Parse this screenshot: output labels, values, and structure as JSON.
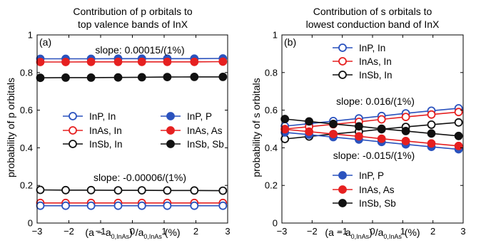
{
  "chart_data": [
    {
      "type": "line",
      "panel_label": "(a)",
      "title_lines": [
        "Contribution of p orbitals to",
        "top valence bands of InX"
      ],
      "ylabel": "probability of p orbitals",
      "xlabel": {
        "main": "(a − a",
        "sub1": "0,InAs",
        "mid": ") /a",
        "sub2": "0,InAs",
        "tail": " (%)"
      },
      "xlim": [
        -3,
        3
      ],
      "ylim": [
        0,
        1
      ],
      "xticks": [
        -3,
        -2,
        -1,
        0,
        1,
        2,
        3
      ],
      "xtick_labels": [
        "−3",
        "−2",
        "−1",
        "0",
        "1",
        "2",
        "3"
      ],
      "yticks": [
        0,
        0.2,
        0.4,
        0.6,
        0.8,
        1
      ],
      "ytick_labels": [
        "0",
        "0.2",
        "0.4",
        "0.6",
        "0.8",
        "1"
      ],
      "x": [
        -2.9,
        -2.1,
        -1.3,
        -0.45,
        0.3,
        1.1,
        1.95,
        2.85
      ],
      "series": [
        {
          "name": "InP, P",
          "color": "#2a52be",
          "marker": "filled",
          "values": [
            0.873,
            0.873,
            0.873,
            0.874,
            0.874,
            0.874,
            0.874,
            0.875
          ]
        },
        {
          "name": "InAs, As",
          "color": "#e62020",
          "marker": "filled",
          "values": [
            0.856,
            0.856,
            0.857,
            0.857,
            0.857,
            0.857,
            0.857,
            0.858
          ]
        },
        {
          "name": "InSb, Sb",
          "color": "#111111",
          "marker": "filled",
          "values": [
            0.772,
            0.773,
            0.773,
            0.774,
            0.775,
            0.776,
            0.777,
            0.777
          ]
        },
        {
          "name": "InSb, In",
          "color": "#111111",
          "marker": "open",
          "values": [
            0.176,
            0.175,
            0.175,
            0.174,
            0.174,
            0.173,
            0.173,
            0.172
          ]
        },
        {
          "name": "InAs, In",
          "color": "#e62020",
          "marker": "open",
          "values": [
            0.107,
            0.107,
            0.107,
            0.107,
            0.107,
            0.107,
            0.107,
            0.107
          ]
        },
        {
          "name": "InP, In",
          "color": "#2a52be",
          "marker": "open",
          "values": [
            0.092,
            0.092,
            0.092,
            0.092,
            0.092,
            0.092,
            0.092,
            0.092
          ]
        }
      ],
      "legend": [
        {
          "label": "InP, In",
          "color": "#2a52be",
          "marker": "open"
        },
        {
          "label": "InP, P",
          "color": "#2a52be",
          "marker": "filled"
        },
        {
          "label": "InAs, In",
          "color": "#e62020",
          "marker": "open"
        },
        {
          "label": "InAs, As",
          "color": "#e62020",
          "marker": "filled"
        },
        {
          "label": "InSb, In",
          "color": "#111111",
          "marker": "open"
        },
        {
          "label": "InSb, Sb",
          "color": "#111111",
          "marker": "filled"
        }
      ],
      "annotations": [
        "slope: 0.00015/(1%)",
        "slope: -0.00006/(1%)"
      ]
    },
    {
      "type": "line",
      "panel_label": "(b)",
      "title_lines": [
        "Contribution of s orbitals to",
        "lowest conduction band of InX"
      ],
      "ylabel": "probability of s orbitals",
      "xlabel": {
        "main": "(a − a",
        "sub1": "0,InAs",
        "mid": ") /a",
        "sub2": "0,InAs",
        "tail": " (%)"
      },
      "xlim": [
        -3,
        3
      ],
      "ylim": [
        0,
        1
      ],
      "xticks": [
        -3,
        -2,
        -1,
        0,
        1,
        2,
        3
      ],
      "xtick_labels": [
        "−3",
        "−2",
        "−1",
        "0",
        "1",
        "2",
        "3"
      ],
      "yticks": [
        0,
        0.2,
        0.4,
        0.6,
        0.8,
        1
      ],
      "ytick_labels": [
        "0",
        "0.2",
        "0.4",
        "0.6",
        "0.8",
        "1"
      ],
      "x": [
        -2.9,
        -2.1,
        -1.3,
        -0.45,
        0.3,
        1.1,
        1.95,
        2.85
      ],
      "series": [
        {
          "name": "InP, In",
          "color": "#2a52be",
          "marker": "open",
          "values": [
            0.515,
            0.528,
            0.542,
            0.556,
            0.569,
            0.583,
            0.597,
            0.61
          ]
        },
        {
          "name": "InAs, In",
          "color": "#e62020",
          "marker": "open",
          "values": [
            0.5,
            0.512,
            0.525,
            0.538,
            0.551,
            0.564,
            0.577,
            0.59
          ]
        },
        {
          "name": "InSb, In",
          "color": "#111111",
          "marker": "open",
          "values": [
            0.447,
            0.46,
            0.473,
            0.486,
            0.499,
            0.511,
            0.523,
            0.535
          ]
        },
        {
          "name": "InP, P",
          "color": "#2a52be",
          "marker": "filled",
          "values": [
            0.482,
            0.47,
            0.457,
            0.444,
            0.431,
            0.418,
            0.405,
            0.392
          ]
        },
        {
          "name": "InAs, As",
          "color": "#e62020",
          "marker": "filled",
          "values": [
            0.498,
            0.486,
            0.473,
            0.461,
            0.448,
            0.436,
            0.423,
            0.41
          ]
        },
        {
          "name": "InSb, Sb",
          "color": "#111111",
          "marker": "filled",
          "values": [
            0.553,
            0.54,
            0.527,
            0.514,
            0.501,
            0.489,
            0.476,
            0.463
          ]
        }
      ],
      "legend_top": [
        {
          "label": "InP, In",
          "color": "#2a52be",
          "marker": "open"
        },
        {
          "label": "InAs, In",
          "color": "#e62020",
          "marker": "open"
        },
        {
          "label": "InSb, In",
          "color": "#111111",
          "marker": "open"
        }
      ],
      "legend_bottom": [
        {
          "label": "InP, P",
          "color": "#2a52be",
          "marker": "filled"
        },
        {
          "label": "InAs, As",
          "color": "#e62020",
          "marker": "filled"
        },
        {
          "label": "InSb, Sb",
          "color": "#111111",
          "marker": "filled"
        }
      ],
      "annotations": [
        "slope: 0.016/(1%)",
        "slope: -0.015/(1%)"
      ]
    }
  ]
}
